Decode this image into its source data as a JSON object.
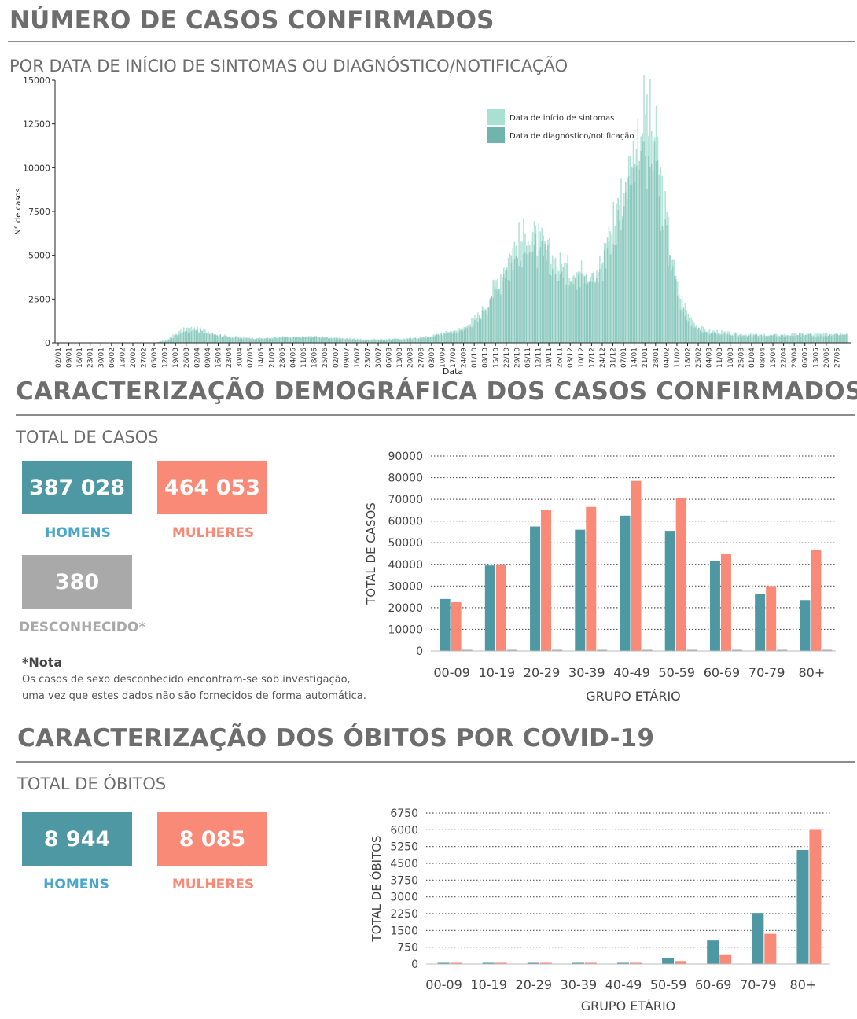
{
  "section1": {
    "title": "NÚMERO DE CASOS CONFIRMADOS",
    "subtitle": "POR DATA DE INÍCIO DE SINTOMAS OU DIAGNÓSTICO/NOTIFICAÇÃO"
  },
  "section2": {
    "title": "CARACTERIZAÇÃO DEMOGRÁFICA DOS CASOS CONFIRMADOS",
    "subtitle": "TOTAL DE CASOS",
    "men_value": "387 028",
    "men_label": "HOMENS",
    "women_value": "464 053",
    "women_label": "MULHERES",
    "unknown_value": "380",
    "unknown_label": "DESCONHECIDO*",
    "note_title": "*Nota",
    "note_line1": "Os casos de sexo desconhecido encontram-se sob investigação,",
    "note_line2": "uma vez que estes dados não são fornecidos de forma automática."
  },
  "section3": {
    "title": "CARACTERIZAÇÃO DOS ÓBITOS POR COVID-19",
    "subtitle": "TOTAL DE ÓBITOS",
    "men_value": "8 944",
    "men_label": "HOMENS",
    "women_value": "8 085",
    "women_label": "MULHERES"
  },
  "colors": {
    "men": "#4e98a3",
    "women": "#f98a77",
    "unknown": "#a9a9a9",
    "men_label": "#4aa7cc",
    "women_label": "#f98a77",
    "symptoms": "#a8e0d2",
    "diagnosis": "#6fb5ad"
  },
  "chart_data": [
    {
      "type": "area",
      "xlabel": "Data",
      "ylabel": "N° de casos",
      "ylim": [
        0,
        15000
      ],
      "yticks": [
        0,
        2500,
        5000,
        7500,
        10000,
        12500,
        15000
      ],
      "x_tick_labels": [
        "02/01",
        "09/01",
        "16/01",
        "23/01",
        "30/01",
        "06/02",
        "13/02",
        "20/02",
        "27/02",
        "05/03",
        "12/03",
        "19/03",
        "26/03",
        "02/04",
        "09/04",
        "16/04",
        "23/04",
        "30/04",
        "07/05",
        "14/05",
        "21/05",
        "28/05",
        "04/06",
        "11/06",
        "18/06",
        "25/06",
        "02/07",
        "09/07",
        "16/07",
        "23/07",
        "30/07",
        "06/08",
        "13/08",
        "20/08",
        "27/08",
        "03/09",
        "10/09",
        "17/09",
        "24/09",
        "01/10",
        "08/10",
        "15/10",
        "22/10",
        "29/10",
        "05/11",
        "12/11",
        "19/11",
        "26/11",
        "03/12",
        "10/12",
        "17/12",
        "24/12",
        "31/12",
        "07/01",
        "14/01",
        "21/01",
        "28/01",
        "04/02",
        "11/02",
        "18/02",
        "25/02",
        "04/03",
        "11/03",
        "18/03",
        "25/03",
        "01/04",
        "08/04",
        "15/04",
        "22/04",
        "29/04",
        "06/05",
        "13/05",
        "20/05",
        "27/05"
      ],
      "legend_position": "top-right",
      "series": [
        {
          "name": "Data de início de sintomas",
          "color": "#a8e0d2",
          "weekly_values": [
            0,
            0,
            0,
            0,
            0,
            0,
            0,
            0,
            0,
            5,
            150,
            550,
            850,
            800,
            650,
            480,
            380,
            320,
            280,
            260,
            300,
            340,
            320,
            350,
            380,
            330,
            300,
            260,
            220,
            200,
            200,
            220,
            240,
            260,
            300,
            420,
            560,
            700,
            900,
            1400,
            2100,
            3600,
            4900,
            6000,
            6400,
            6000,
            5200,
            4600,
            4300,
            4200,
            4300,
            4800,
            7600,
            9000,
            11500,
            14000,
            11800,
            7000,
            3200,
            1700,
            900,
            700,
            650,
            550,
            500,
            500,
            450,
            450,
            480,
            500,
            520,
            500,
            520,
            540
          ]
        },
        {
          "name": "Data de diagnóstico/notificação",
          "color": "#6fb5ad",
          "weekly_values": [
            0,
            0,
            0,
            0,
            0,
            0,
            0,
            0,
            0,
            2,
            80,
            400,
            700,
            700,
            600,
            420,
            330,
            280,
            250,
            230,
            260,
            300,
            300,
            320,
            340,
            300,
            260,
            230,
            200,
            180,
            180,
            200,
            220,
            240,
            280,
            380,
            500,
            620,
            800,
            1200,
            1800,
            3000,
            4200,
            5200,
            5600,
            5400,
            4800,
            4200,
            3800,
            3700,
            3800,
            4300,
            6500,
            8000,
            10000,
            11000,
            9800,
            6000,
            2800,
            1400,
            800,
            600,
            550,
            480,
            450,
            440,
            400,
            400,
            420,
            440,
            460,
            440,
            460,
            480
          ]
        }
      ]
    },
    {
      "type": "bar",
      "xlabel": "GRUPO ETÁRIO",
      "ylabel": "TOTAL DE CASOS",
      "ylim": [
        0,
        90000
      ],
      "yticks": [
        0,
        10000,
        20000,
        30000,
        40000,
        50000,
        60000,
        70000,
        80000,
        90000
      ],
      "categories": [
        "00-09",
        "10-19",
        "20-29",
        "30-39",
        "40-49",
        "50-59",
        "60-69",
        "70-79",
        "80+"
      ],
      "series": [
        {
          "name": "HOMENS",
          "color": "#4e98a3",
          "values": [
            24000,
            39500,
            57500,
            56000,
            62500,
            55500,
            41500,
            26500,
            23500
          ]
        },
        {
          "name": "MULHERES",
          "color": "#f98a77",
          "values": [
            22500,
            40000,
            65000,
            66500,
            78500,
            70500,
            45000,
            30000,
            46500
          ]
        },
        {
          "name": "DESCONHECIDO*",
          "color": "#a9a9a9",
          "values": [
            30,
            40,
            60,
            60,
            60,
            50,
            40,
            20,
            20
          ]
        }
      ]
    },
    {
      "type": "bar",
      "xlabel": "GRUPO ETÁRIO",
      "ylabel": "TOTAL DE ÓBITOS",
      "ylim": [
        0,
        6750
      ],
      "yticks": [
        0,
        750,
        1500,
        2250,
        3000,
        3750,
        4500,
        5250,
        6000,
        6750
      ],
      "categories": [
        "00-09",
        "10-19",
        "20-29",
        "30-39",
        "40-49",
        "50-59",
        "60-69",
        "70-79",
        "80+"
      ],
      "series": [
        {
          "name": "HOMENS",
          "color": "#4e98a3",
          "values": [
            2,
            3,
            8,
            18,
            40,
            280,
            1050,
            2280,
            5100
          ]
        },
        {
          "name": "MULHERES",
          "color": "#f98a77",
          "values": [
            2,
            2,
            5,
            12,
            25,
            130,
            430,
            1350,
            6030
          ]
        }
      ]
    }
  ]
}
